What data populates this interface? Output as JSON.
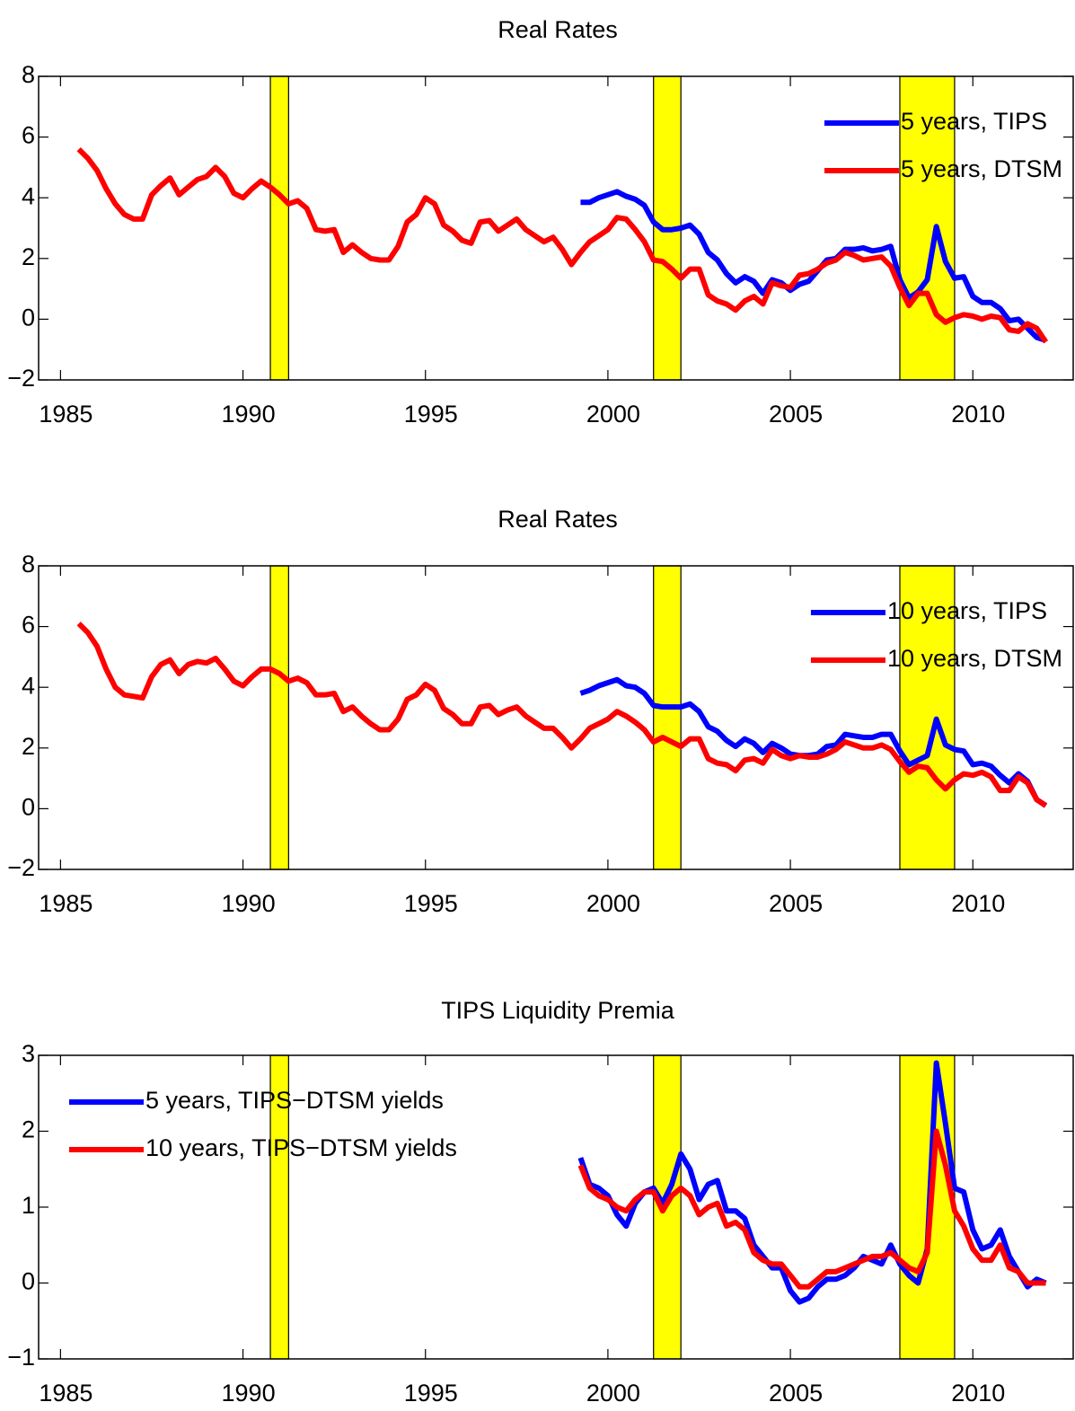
{
  "chart_data": [
    {
      "type": "line",
      "title": "Real Rates",
      "x": [
        1985.5,
        1985.75,
        1986,
        1986.25,
        1986.5,
        1986.75,
        1987,
        1987.25,
        1987.5,
        1987.75,
        1988,
        1988.25,
        1988.5,
        1988.75,
        1989,
        1989.25,
        1989.5,
        1989.75,
        1990,
        1990.25,
        1990.5,
        1990.75,
        1991,
        1991.25,
        1991.5,
        1991.75,
        1992,
        1992.25,
        1992.5,
        1992.75,
        1993,
        1993.25,
        1993.5,
        1993.75,
        1994,
        1994.25,
        1994.5,
        1994.75,
        1995,
        1995.25,
        1995.5,
        1995.75,
        1996,
        1996.25,
        1996.5,
        1996.75,
        1997,
        1997.25,
        1997.5,
        1997.75,
        1998,
        1998.25,
        1998.5,
        1998.75,
        1999,
        1999.25,
        1999.5,
        1999.75,
        2000,
        2000.25,
        2000.5,
        2000.75,
        2001,
        2001.25,
        2001.5,
        2001.75,
        2002,
        2002.25,
        2002.5,
        2002.75,
        2003,
        2003.25,
        2003.5,
        2003.75,
        2004,
        2004.25,
        2004.5,
        2004.75,
        2005,
        2005.25,
        2005.5,
        2005.75,
        2006,
        2006.25,
        2006.5,
        2006.75,
        2007,
        2007.25,
        2007.5,
        2007.75,
        2008,
        2008.25,
        2008.5,
        2008.75,
        2009,
        2009.25,
        2009.5,
        2009.75,
        2010,
        2010.25,
        2010.5,
        2010.75,
        2011,
        2011.25,
        2011.5,
        2011.75,
        2012
      ],
      "series": [
        {
          "name": "5 years, TIPS",
          "color": "#0000ff",
          "values": [
            null,
            null,
            null,
            null,
            null,
            null,
            null,
            null,
            null,
            null,
            null,
            null,
            null,
            null,
            null,
            null,
            null,
            null,
            null,
            null,
            null,
            null,
            null,
            null,
            null,
            null,
            null,
            null,
            null,
            null,
            null,
            null,
            null,
            null,
            null,
            null,
            null,
            null,
            null,
            null,
            null,
            null,
            null,
            null,
            null,
            null,
            null,
            null,
            null,
            null,
            null,
            null,
            null,
            null,
            null,
            3.85,
            3.85,
            4.0,
            4.1,
            4.2,
            4.05,
            3.95,
            3.75,
            3.2,
            2.95,
            2.95,
            3.0,
            3.1,
            2.8,
            2.2,
            1.95,
            1.5,
            1.2,
            1.4,
            1.25,
            0.85,
            1.3,
            1.2,
            0.95,
            1.15,
            1.25,
            1.6,
            1.95,
            2.0,
            2.3,
            2.3,
            2.35,
            2.25,
            2.3,
            2.4,
            1.3,
            0.7,
            0.9,
            1.3,
            3.05,
            1.9,
            1.35,
            1.4,
            0.75,
            0.55,
            0.55,
            0.35,
            -0.05,
            0.0,
            -0.3,
            -0.6,
            -0.7
          ]
        },
        {
          "name": "5 years, DTSM",
          "color": "#ff0000",
          "values": [
            5.6,
            5.3,
            4.9,
            4.3,
            3.8,
            3.45,
            3.3,
            3.3,
            4.1,
            4.4,
            4.65,
            4.1,
            4.35,
            4.6,
            4.7,
            5.0,
            4.7,
            4.15,
            4.0,
            4.3,
            4.55,
            4.35,
            4.1,
            3.8,
            3.9,
            3.65,
            2.95,
            2.9,
            2.95,
            2.2,
            2.45,
            2.2,
            2.0,
            1.95,
            1.95,
            2.4,
            3.2,
            3.45,
            4.0,
            3.8,
            3.1,
            2.9,
            2.6,
            2.5,
            3.2,
            3.25,
            2.9,
            3.1,
            3.3,
            2.95,
            2.75,
            2.55,
            2.7,
            2.3,
            1.8,
            2.2,
            2.55,
            2.75,
            2.95,
            3.35,
            3.3,
            2.95,
            2.55,
            1.95,
            1.9,
            1.65,
            1.35,
            1.65,
            1.65,
            0.8,
            0.6,
            0.5,
            0.3,
            0.6,
            0.75,
            0.5,
            1.2,
            1.1,
            1.05,
            1.45,
            1.5,
            1.65,
            1.85,
            1.95,
            2.2,
            2.1,
            1.95,
            2.0,
            2.05,
            1.75,
            1.05,
            0.45,
            0.85,
            0.85,
            0.15,
            -0.1,
            0.05,
            0.15,
            0.1,
            0.0,
            0.1,
            0.05,
            -0.35,
            -0.4,
            -0.15,
            -0.3,
            -0.75
          ]
        }
      ],
      "xlim": [
        1984.4,
        2012.75
      ],
      "ylim": [
        -2,
        8
      ],
      "xticks": [
        1985,
        1990,
        1995,
        2000,
        2005,
        2010
      ],
      "yticks": [
        {
          "value": -2,
          "label": "−2"
        },
        0,
        2,
        4,
        6,
        8
      ],
      "legend": "upper right",
      "shaded_regions": [
        [
          1990.75,
          1991.25
        ],
        [
          2001.25,
          2002
        ],
        [
          2008,
          2009.5
        ]
      ],
      "shade_color": "#ffff00"
    },
    {
      "type": "line",
      "title": "Real Rates",
      "x": [
        1985.5,
        1985.75,
        1986,
        1986.25,
        1986.5,
        1986.75,
        1987,
        1987.25,
        1987.5,
        1987.75,
        1988,
        1988.25,
        1988.5,
        1988.75,
        1989,
        1989.25,
        1989.5,
        1989.75,
        1990,
        1990.25,
        1990.5,
        1990.75,
        1991,
        1991.25,
        1991.5,
        1991.75,
        1992,
        1992.25,
        1992.5,
        1992.75,
        1993,
        1993.25,
        1993.5,
        1993.75,
        1994,
        1994.25,
        1994.5,
        1994.75,
        1995,
        1995.25,
        1995.5,
        1995.75,
        1996,
        1996.25,
        1996.5,
        1996.75,
        1997,
        1997.25,
        1997.5,
        1997.75,
        1998,
        1998.25,
        1998.5,
        1998.75,
        1999,
        1999.25,
        1999.5,
        1999.75,
        2000,
        2000.25,
        2000.5,
        2000.75,
        2001,
        2001.25,
        2001.5,
        2001.75,
        2002,
        2002.25,
        2002.5,
        2002.75,
        2003,
        2003.25,
        2003.5,
        2003.75,
        2004,
        2004.25,
        2004.5,
        2004.75,
        2005,
        2005.25,
        2005.5,
        2005.75,
        2006,
        2006.25,
        2006.5,
        2006.75,
        2007,
        2007.25,
        2007.5,
        2007.75,
        2008,
        2008.25,
        2008.5,
        2008.75,
        2009,
        2009.25,
        2009.5,
        2009.75,
        2010,
        2010.25,
        2010.5,
        2010.75,
        2011,
        2011.25,
        2011.5,
        2011.75,
        2012
      ],
      "series": [
        {
          "name": "10 years, TIPS",
          "color": "#0000ff",
          "values": [
            null,
            null,
            null,
            null,
            null,
            null,
            null,
            null,
            null,
            null,
            null,
            null,
            null,
            null,
            null,
            null,
            null,
            null,
            null,
            null,
            null,
            null,
            null,
            null,
            null,
            null,
            null,
            null,
            null,
            null,
            null,
            null,
            null,
            null,
            null,
            null,
            null,
            null,
            null,
            null,
            null,
            null,
            null,
            null,
            null,
            null,
            null,
            null,
            null,
            null,
            null,
            null,
            null,
            null,
            null,
            3.8,
            3.9,
            4.05,
            4.15,
            4.25,
            4.05,
            4.0,
            3.8,
            3.4,
            3.35,
            3.35,
            3.35,
            3.45,
            3.2,
            2.7,
            2.55,
            2.25,
            2.05,
            2.3,
            2.15,
            1.85,
            2.15,
            2.0,
            1.8,
            1.75,
            1.75,
            1.8,
            2.05,
            2.1,
            2.45,
            2.4,
            2.35,
            2.35,
            2.45,
            2.45,
            1.9,
            1.45,
            1.6,
            1.75,
            2.95,
            2.1,
            1.95,
            1.9,
            1.45,
            1.5,
            1.4,
            1.1,
            0.85,
            1.15,
            0.9,
            0.3,
            0.1
          ]
        },
        {
          "name": "10 years, DTSM",
          "color": "#ff0000",
          "values": [
            6.1,
            5.8,
            5.35,
            4.6,
            4.0,
            3.75,
            3.7,
            3.65,
            4.35,
            4.75,
            4.9,
            4.45,
            4.75,
            4.85,
            4.8,
            4.95,
            4.6,
            4.2,
            4.05,
            4.35,
            4.6,
            4.6,
            4.45,
            4.2,
            4.3,
            4.15,
            3.75,
            3.75,
            3.8,
            3.2,
            3.35,
            3.05,
            2.8,
            2.6,
            2.6,
            2.95,
            3.6,
            3.75,
            4.1,
            3.9,
            3.3,
            3.1,
            2.8,
            2.8,
            3.35,
            3.4,
            3.1,
            3.25,
            3.35,
            3.05,
            2.85,
            2.65,
            2.65,
            2.35,
            2.0,
            2.3,
            2.65,
            2.8,
            2.95,
            3.2,
            3.05,
            2.85,
            2.6,
            2.2,
            2.35,
            2.2,
            2.05,
            2.3,
            2.3,
            1.65,
            1.5,
            1.45,
            1.25,
            1.6,
            1.65,
            1.5,
            1.95,
            1.75,
            1.65,
            1.75,
            1.7,
            1.7,
            1.8,
            1.95,
            2.2,
            2.1,
            2.0,
            2.0,
            2.1,
            1.95,
            1.55,
            1.2,
            1.4,
            1.35,
            0.95,
            0.65,
            0.95,
            1.15,
            1.1,
            1.2,
            1.05,
            0.6,
            0.6,
            1.05,
            0.85,
            0.3,
            0.1
          ]
        }
      ],
      "xlim": [
        1984.4,
        2012.75
      ],
      "ylim": [
        -2,
        8
      ],
      "xticks": [
        1985,
        1990,
        1995,
        2000,
        2005,
        2010
      ],
      "yticks": [
        {
          "value": -2,
          "label": "−2"
        },
        0,
        2,
        4,
        6,
        8
      ],
      "legend": "upper right",
      "shaded_regions": [
        [
          1990.75,
          1991.25
        ],
        [
          2001.25,
          2002
        ],
        [
          2008,
          2009.5
        ]
      ],
      "shade_color": "#ffff00"
    },
    {
      "type": "line",
      "title": "TIPS Liquidity Premia",
      "x": [
        1999.25,
        1999.5,
        1999.75,
        2000,
        2000.25,
        2000.5,
        2000.75,
        2001,
        2001.25,
        2001.5,
        2001.75,
        2002,
        2002.25,
        2002.5,
        2002.75,
        2003,
        2003.25,
        2003.5,
        2003.75,
        2004,
        2004.25,
        2004.5,
        2004.75,
        2005,
        2005.25,
        2005.5,
        2005.75,
        2006,
        2006.25,
        2006.5,
        2006.75,
        2007,
        2007.25,
        2007.5,
        2007.75,
        2008,
        2008.25,
        2008.5,
        2008.75,
        2009,
        2009.25,
        2009.5,
        2009.75,
        2010,
        2010.25,
        2010.5,
        2010.75,
        2011,
        2011.25,
        2011.5,
        2011.75,
        2012
      ],
      "series": [
        {
          "name": "5 years, TIPS−DTSM yields",
          "color": "#0000ff",
          "values": [
            1.65,
            1.3,
            1.25,
            1.15,
            0.9,
            0.75,
            1.05,
            1.2,
            1.25,
            1.05,
            1.3,
            1.7,
            1.5,
            1.1,
            1.3,
            1.35,
            0.95,
            0.95,
            0.85,
            0.5,
            0.35,
            0.2,
            0.2,
            -0.1,
            -0.25,
            -0.2,
            -0.05,
            0.05,
            0.05,
            0.1,
            0.2,
            0.35,
            0.3,
            0.25,
            0.5,
            0.25,
            0.1,
            0.0,
            0.45,
            2.9,
            2.1,
            1.25,
            1.2,
            0.7,
            0.45,
            0.5,
            0.7,
            0.35,
            0.15,
            -0.05,
            0.05,
            0.0
          ]
        },
        {
          "name": "10 years, TIPS−DTSM yields",
          "color": "#ff0000",
          "values": [
            1.55,
            1.25,
            1.15,
            1.1,
            1.0,
            0.95,
            1.1,
            1.2,
            1.2,
            0.95,
            1.15,
            1.25,
            1.15,
            0.9,
            1.0,
            1.05,
            0.75,
            0.8,
            0.7,
            0.4,
            0.3,
            0.25,
            0.25,
            0.1,
            -0.05,
            -0.05,
            0.05,
            0.15,
            0.15,
            0.2,
            0.25,
            0.3,
            0.35,
            0.35,
            0.4,
            0.3,
            0.2,
            0.15,
            0.4,
            2.0,
            1.55,
            0.95,
            0.75,
            0.45,
            0.3,
            0.3,
            0.5,
            0.2,
            0.15,
            0.0,
            0.0,
            0.0
          ]
        }
      ],
      "xlim": [
        1984.4,
        2012.75
      ],
      "ylim": [
        -1,
        3
      ],
      "xticks": [
        1985,
        1990,
        1995,
        2000,
        2005,
        2010
      ],
      "yticks": [
        {
          "value": -1,
          "label": "−1"
        },
        0,
        1,
        2,
        3
      ],
      "legend": "upper left",
      "shaded_regions": [
        [
          1990.75,
          1991.25
        ],
        [
          2001.25,
          2002
        ],
        [
          2008,
          2009.5
        ]
      ],
      "shade_color": "#ffff00"
    }
  ]
}
